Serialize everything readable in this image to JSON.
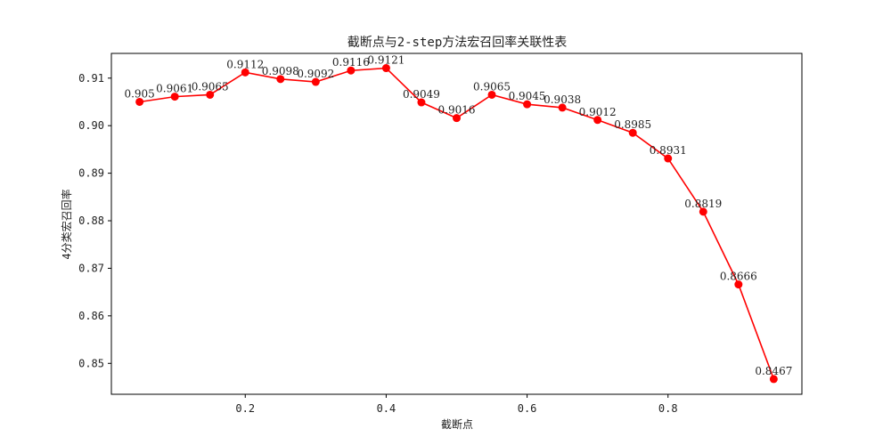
{
  "chart_data": {
    "type": "line",
    "title": "截断点与2-step方法宏召回率关联性表",
    "xlabel": "截断点",
    "ylabel": "4分类宏召回率",
    "xlim": [
      0.01,
      0.99
    ],
    "ylim": [
      0.8435,
      0.9152
    ],
    "xticks": [
      0.2,
      0.4,
      0.6,
      0.8
    ],
    "xtick_labels": [
      "0.2",
      "0.4",
      "0.6",
      "0.8"
    ],
    "yticks": [
      0.85,
      0.86,
      0.87,
      0.88,
      0.89,
      0.9,
      0.91
    ],
    "ytick_labels": [
      "0.85",
      "0.86",
      "0.87",
      "0.88",
      "0.89",
      "0.90",
      "0.91"
    ],
    "grid": false,
    "color": "#ff0000",
    "x": [
      0.05,
      0.1,
      0.15,
      0.2,
      0.25,
      0.3,
      0.35,
      0.4,
      0.45,
      0.5,
      0.55,
      0.6,
      0.65,
      0.7,
      0.75,
      0.8,
      0.85,
      0.9,
      0.95
    ],
    "y": [
      0.905,
      0.9061,
      0.9065,
      0.9112,
      0.9098,
      0.9092,
      0.9116,
      0.9121,
      0.9049,
      0.9016,
      0.9065,
      0.9045,
      0.9038,
      0.9012,
      0.8985,
      0.8931,
      0.8819,
      0.8666,
      0.8467
    ],
    "point_labels": [
      "0.905",
      "0.9061",
      "0.9065",
      "0.9112",
      "0.9098",
      "0.9092",
      "0.9116",
      "0.9121",
      "0.9049",
      "0.9016",
      "0.9065",
      "0.9045",
      "0.9038",
      "0.9012",
      "0.8985",
      "0.8931",
      "0.8819",
      "0.8666",
      "0.8467"
    ]
  }
}
